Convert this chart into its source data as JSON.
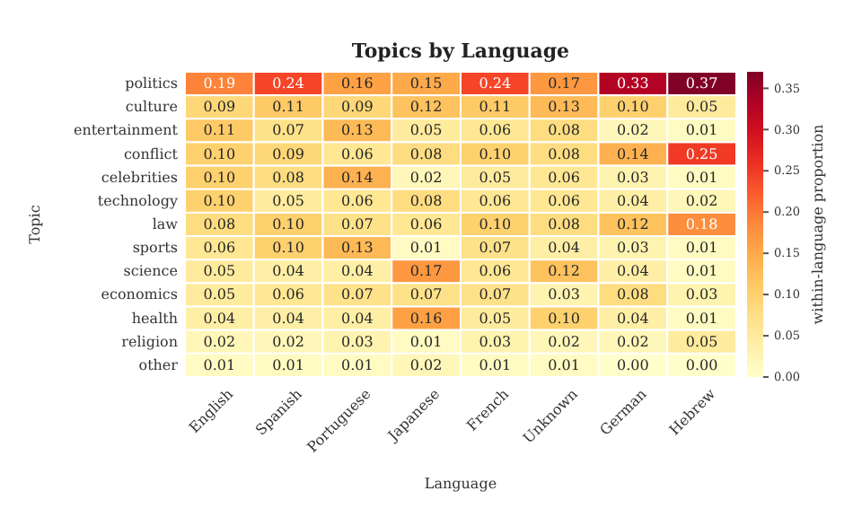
{
  "chart_data": {
    "type": "heatmap",
    "title": "Topics by Language",
    "xlabel": "Language",
    "ylabel": "Topic",
    "clabel": "within-language proportion",
    "categories": [
      "English",
      "Spanish",
      "Portuguese",
      "Japanese",
      "French",
      "Unknown",
      "German",
      "Hebrew"
    ],
    "y_categories": [
      "politics",
      "culture",
      "entertainment",
      "conflict",
      "celebrities",
      "technology",
      "law",
      "sports",
      "science",
      "economics",
      "health",
      "religion",
      "other"
    ],
    "cells": [
      [
        0.19,
        0.24,
        0.16,
        0.15,
        0.24,
        0.17,
        0.33,
        0.37
      ],
      [
        0.09,
        0.11,
        0.09,
        0.12,
        0.11,
        0.13,
        0.1,
        0.05
      ],
      [
        0.11,
        0.07,
        0.13,
        0.05,
        0.06,
        0.08,
        0.02,
        0.01
      ],
      [
        0.1,
        0.09,
        0.06,
        0.08,
        0.1,
        0.08,
        0.14,
        0.25
      ],
      [
        0.1,
        0.08,
        0.14,
        0.02,
        0.05,
        0.06,
        0.03,
        0.01
      ],
      [
        0.1,
        0.05,
        0.06,
        0.08,
        0.06,
        0.06,
        0.04,
        0.02
      ],
      [
        0.08,
        0.1,
        0.07,
        0.06,
        0.1,
        0.08,
        0.12,
        0.18
      ],
      [
        0.06,
        0.1,
        0.13,
        0.01,
        0.07,
        0.04,
        0.03,
        0.01
      ],
      [
        0.05,
        0.04,
        0.04,
        0.17,
        0.06,
        0.12,
        0.04,
        0.01
      ],
      [
        0.05,
        0.06,
        0.07,
        0.07,
        0.07,
        0.03,
        0.08,
        0.03
      ],
      [
        0.04,
        0.04,
        0.04,
        0.16,
        0.05,
        0.1,
        0.04,
        0.01
      ],
      [
        0.02,
        0.02,
        0.03,
        0.01,
        0.03,
        0.02,
        0.02,
        0.05
      ],
      [
        0.01,
        0.01,
        0.01,
        0.02,
        0.01,
        0.01,
        0.0,
        0.0
      ]
    ],
    "cell_labels": [
      [
        "0.19",
        "0.24",
        "0.16",
        "0.15",
        "0.24",
        "0.17",
        "0.33",
        "0.37"
      ],
      [
        "0.09",
        "0.11",
        "0.09",
        "0.12",
        "0.11",
        "0.13",
        "0.10",
        "0.05"
      ],
      [
        "0.11",
        "0.07",
        "0.13",
        "0.05",
        "0.06",
        "0.08",
        "0.02",
        "0.01"
      ],
      [
        "0.10",
        "0.09",
        "0.06",
        "0.08",
        "0.10",
        "0.08",
        "0.14",
        "0.25"
      ],
      [
        "0.10",
        "0.08",
        "0.14",
        "0.02",
        "0.05",
        "0.06",
        "0.03",
        "0.01"
      ],
      [
        "0.10",
        "0.05",
        "0.06",
        "0.08",
        "0.06",
        "0.06",
        "0.04",
        "0.02"
      ],
      [
        "0.08",
        "0.10",
        "0.07",
        "0.06",
        "0.10",
        "0.08",
        "0.12",
        "0.18"
      ],
      [
        "0.06",
        "0.10",
        "0.13",
        "0.01",
        "0.07",
        "0.04",
        "0.03",
        "0.01"
      ],
      [
        "0.05",
        "0.04",
        "0.04",
        "0.17",
        "0.06",
        "0.12",
        "0.04",
        "0.01"
      ],
      [
        "0.05",
        "0.06",
        "0.07",
        "0.07",
        "0.07",
        "0.03",
        "0.08",
        "0.03"
      ],
      [
        "0.04",
        "0.04",
        "0.04",
        "0.16",
        "0.05",
        "0.10",
        "0.04",
        "0.01"
      ],
      [
        "0.02",
        "0.02",
        "0.03",
        "0.01",
        "0.03",
        "0.02",
        "0.02",
        "0.05"
      ],
      [
        "0.01",
        "0.01",
        "0.01",
        "0.02",
        "0.01",
        "0.01",
        "0.00",
        "0.00"
      ]
    ],
    "data_labels": true,
    "clim": [
      0,
      0.37
    ],
    "cticks": [
      {
        "value": 0,
        "label": "0.00"
      },
      {
        "value": 0.05,
        "label": "0.05"
      },
      {
        "value": 0.1,
        "label": "0.10"
      },
      {
        "value": 0.15,
        "label": "0.15"
      },
      {
        "value": 0.2,
        "label": "0.20"
      },
      {
        "value": 0.25,
        "label": "0.25"
      },
      {
        "value": 0.3,
        "label": "0.30"
      },
      {
        "value": 0.35,
        "label": "0.35"
      }
    ]
  }
}
